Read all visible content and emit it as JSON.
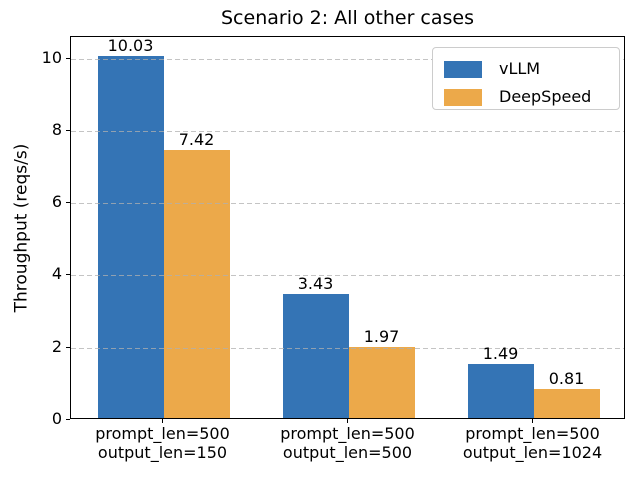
{
  "chart_data": {
    "type": "bar",
    "title": "Scenario 2: All other cases",
    "xlabel": "",
    "ylabel": "Throughput (reqs/s)",
    "categories": [
      "prompt_len=500\noutput_len=150",
      "prompt_len=500\noutput_len=500",
      "prompt_len=500\noutput_len=1024"
    ],
    "series": [
      {
        "name": "vLLM",
        "color": "#3474B5",
        "values": [
          10.03,
          3.43,
          1.49
        ]
      },
      {
        "name": "DeepSpeed",
        "color": "#ECA94A",
        "values": [
          7.42,
          1.97,
          0.81
        ]
      }
    ],
    "value_labels": [
      "10.03",
      "7.42",
      "3.43",
      "1.97",
      "1.49",
      "0.81"
    ],
    "yticks": [
      0,
      2,
      4,
      6,
      8,
      10
    ],
    "ylim": [
      0,
      10.6
    ],
    "grid": "horizontal-dashed",
    "grid_color": "#b0b0b0",
    "legend_position": "upper right",
    "spine_color": "#000000"
  }
}
